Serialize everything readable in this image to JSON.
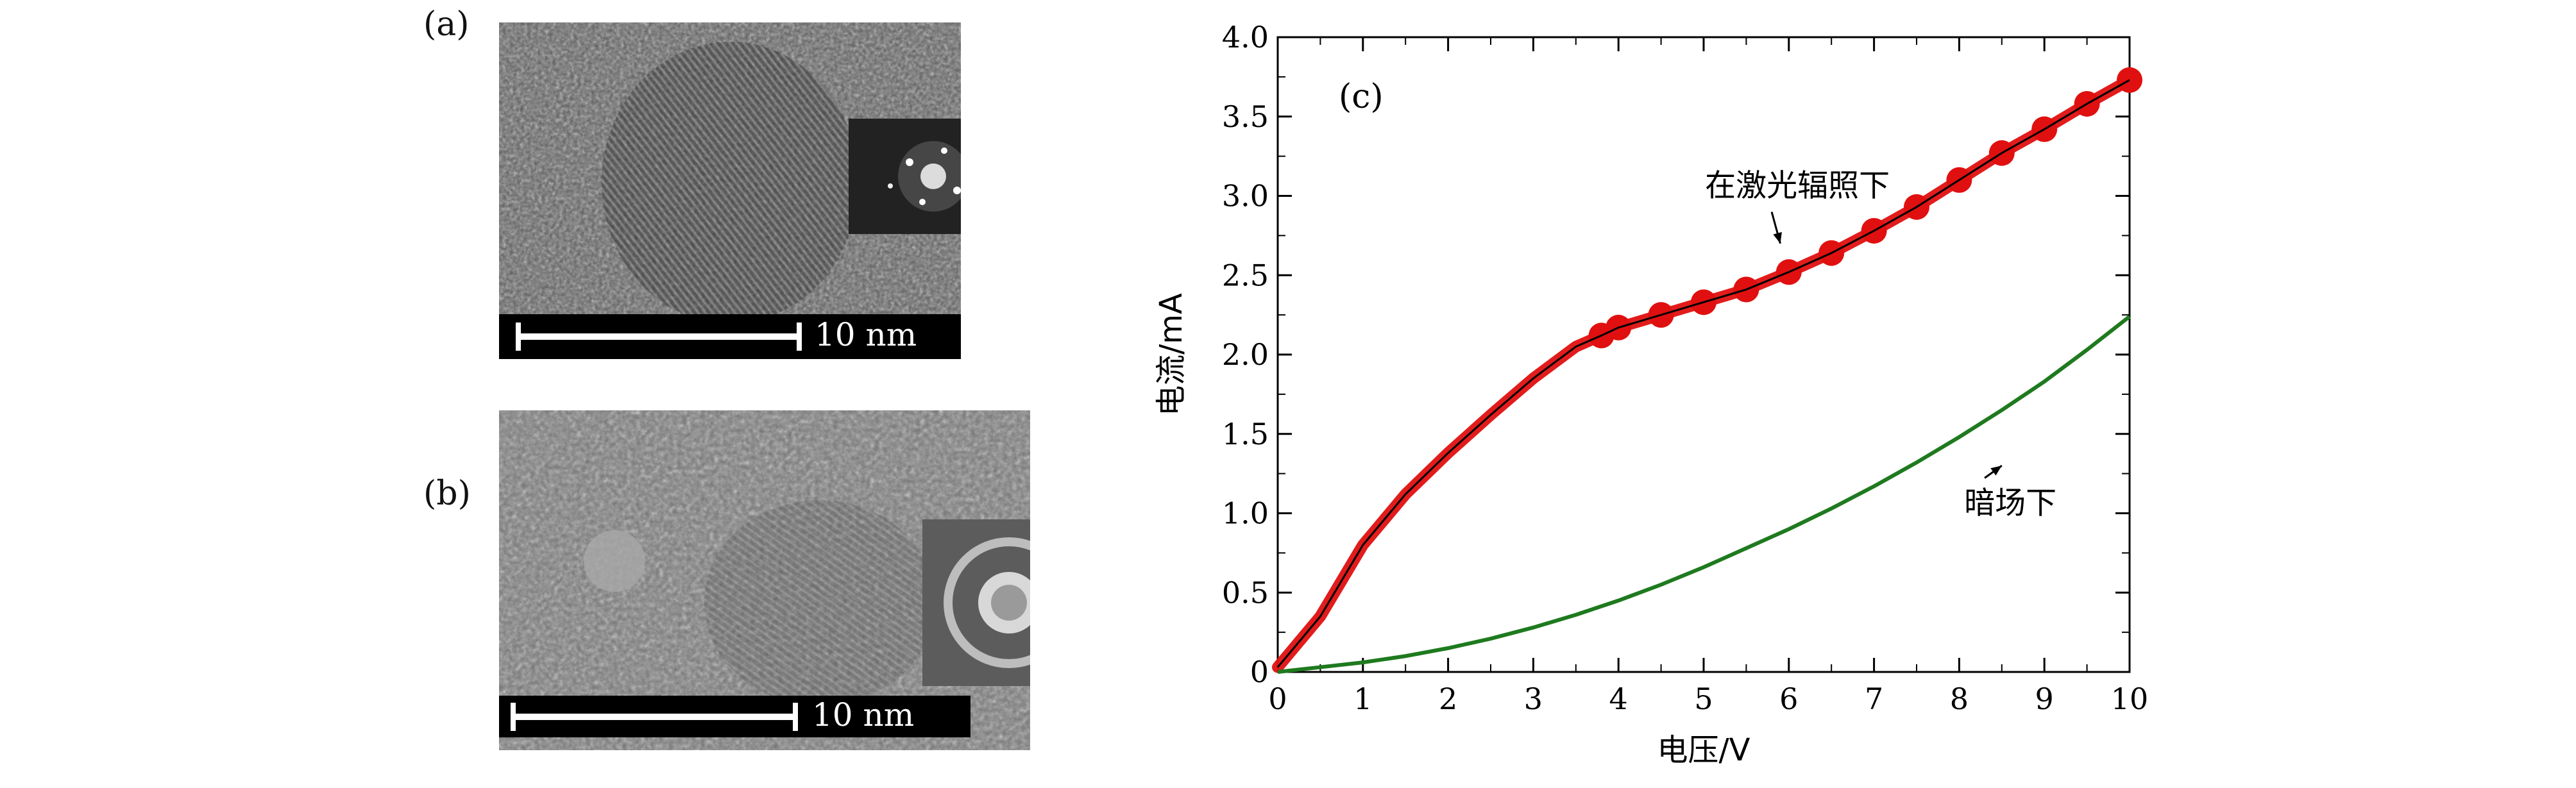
{
  "panels": {
    "a": {
      "label": "(a)",
      "scale_text": "10 nm"
    },
    "b": {
      "label": "(b)",
      "scale_text": "10 nm"
    }
  },
  "chart_data": {
    "type": "line",
    "panel_label": "(c)",
    "xlabel": "电压/V",
    "ylabel": "电流/mA",
    "xlim": [
      0,
      10
    ],
    "ylim": [
      0,
      4.0
    ],
    "xticks": [
      0,
      1,
      2,
      3,
      4,
      5,
      6,
      7,
      8,
      9,
      10
    ],
    "yticks": [
      0,
      0.5,
      1.0,
      1.5,
      2.0,
      2.5,
      3.0,
      3.5,
      4.0
    ],
    "ytick_labels": [
      "0",
      "0.5",
      "1.0",
      "1.5",
      "2.0",
      "2.5",
      "3.0",
      "3.5",
      "4.0"
    ],
    "series": [
      {
        "name": "在激光辐照下",
        "color": "#e01010",
        "x": [
          0,
          0.5,
          1.0,
          1.5,
          2.0,
          2.5,
          3.0,
          3.5,
          3.8,
          4.0,
          4.5,
          5.0,
          5.5,
          6.0,
          6.5,
          7.0,
          7.5,
          8.0,
          8.5,
          9.0,
          9.5,
          10.0
        ],
        "values": [
          0.03,
          0.35,
          0.8,
          1.12,
          1.38,
          1.62,
          1.85,
          2.05,
          2.12,
          2.17,
          2.25,
          2.33,
          2.41,
          2.52,
          2.64,
          2.78,
          2.93,
          3.1,
          3.27,
          3.42,
          3.58,
          3.73
        ]
      },
      {
        "name": "暗场下",
        "color": "#1e7a1e",
        "x": [
          0,
          0.5,
          1.0,
          1.5,
          2.0,
          2.5,
          3.0,
          3.5,
          4.0,
          4.5,
          5.0,
          5.5,
          6.0,
          6.5,
          7.0,
          7.5,
          8.0,
          8.5,
          9.0,
          9.5,
          10.0
        ],
        "values": [
          0.0,
          0.03,
          0.06,
          0.1,
          0.15,
          0.21,
          0.28,
          0.36,
          0.45,
          0.55,
          0.66,
          0.78,
          0.9,
          1.03,
          1.17,
          1.32,
          1.48,
          1.65,
          1.83,
          2.03,
          2.24
        ]
      }
    ],
    "annotations": [
      {
        "text": "在激光辐照下",
        "x": 6.1,
        "y": 3.0,
        "arrow_to": [
          5.9,
          2.7
        ]
      },
      {
        "text": "暗场下",
        "x": 8.6,
        "y": 1.0,
        "arrow_to": [
          8.5,
          1.3
        ]
      }
    ]
  }
}
